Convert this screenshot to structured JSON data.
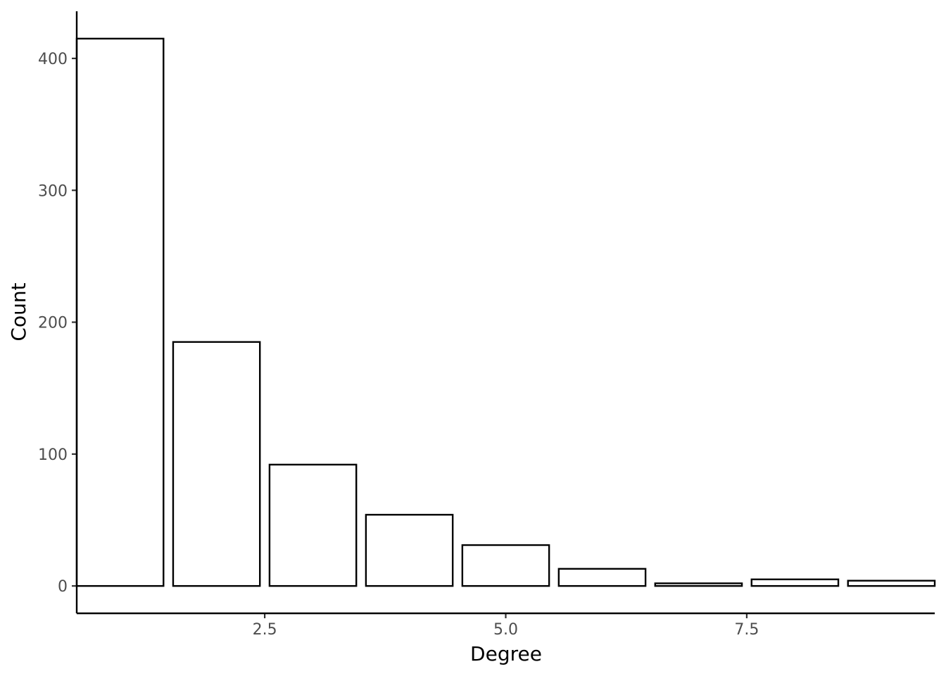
{
  "chart_data": {
    "type": "bar",
    "title": "",
    "xlabel": "Degree",
    "ylabel": "Count",
    "x": [
      1,
      2,
      3,
      4,
      5,
      6,
      7,
      8,
      9
    ],
    "values": [
      415,
      185,
      92,
      54,
      31,
      13,
      2,
      5,
      4
    ],
    "xlim": [
      0.55,
      9.45
    ],
    "ylim": [
      -20.75,
      435.75
    ],
    "xticks": [
      2.5,
      5.0,
      7.5
    ],
    "xtick_labels": [
      "2.5",
      "5.0",
      "7.5"
    ],
    "yticks": [
      0,
      100,
      200,
      300,
      400
    ],
    "ytick_labels": [
      "0",
      "100",
      "200",
      "300",
      "400"
    ],
    "bar_fill": "#ffffff",
    "bar_stroke": "#000000",
    "grid": false,
    "legend": "none"
  }
}
